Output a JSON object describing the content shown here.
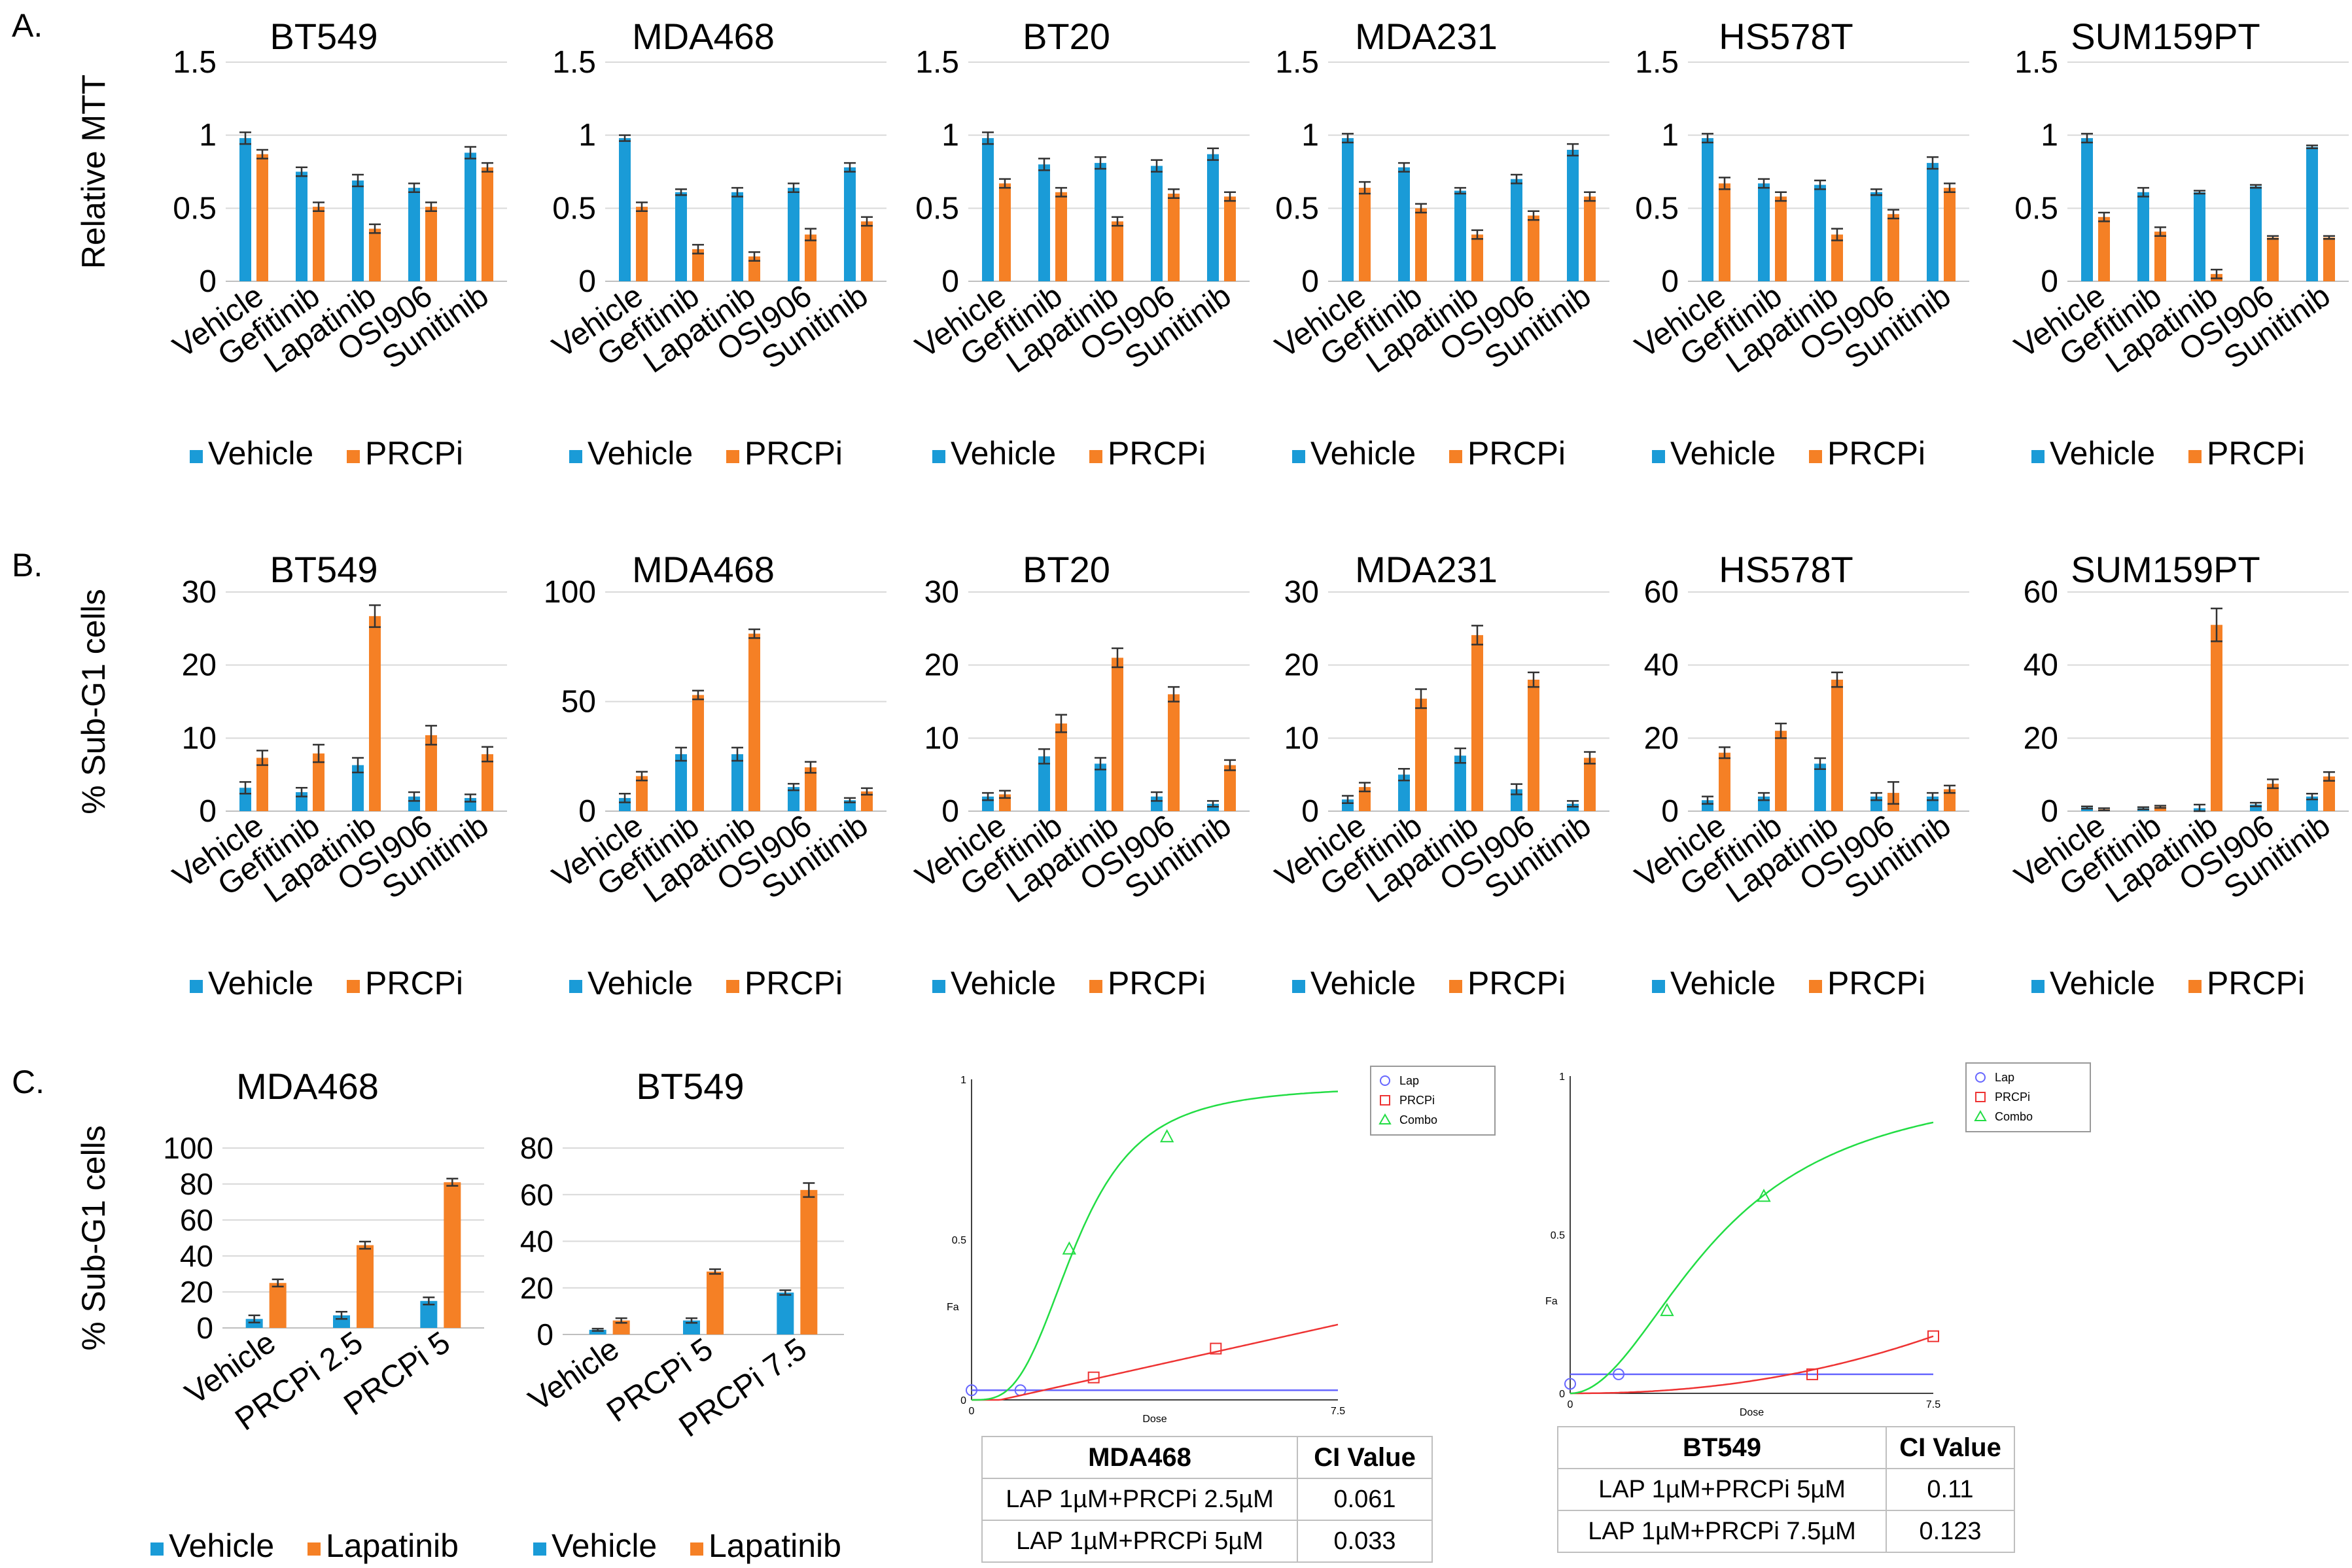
{
  "colors": {
    "vehicle": "#1a9bd7",
    "treatment": "#f58025",
    "error": "#333333",
    "grid": "#d9d9d9",
    "lap": "#6666ff",
    "prcpi": "#ee3333",
    "combo": "#22dd44"
  },
  "panels": {
    "a": "A.",
    "b": "B.",
    "c": "C."
  },
  "chart_data": [
    {
      "id": "A1",
      "type": "bar",
      "title": "BT549",
      "ylabel": "Relative MTT",
      "ylim": [
        0,
        1.5
      ],
      "yticks": [
        "0",
        "0.5",
        "1",
        "1.5"
      ],
      "categories": [
        "Vehicle",
        "Gefitinib",
        "Lapatinib",
        "OSI906",
        "Sunitinib"
      ],
      "legend": [
        "Vehicle",
        "PRCPi"
      ],
      "series": [
        {
          "name": "Vehicle",
          "values": [
            0.98,
            0.75,
            0.69,
            0.64,
            0.88
          ],
          "errors": [
            0.04,
            0.03,
            0.04,
            0.03,
            0.04
          ]
        },
        {
          "name": "PRCPi",
          "values": [
            0.87,
            0.51,
            0.36,
            0.51,
            0.78
          ],
          "errors": [
            0.03,
            0.03,
            0.03,
            0.03,
            0.03
          ]
        }
      ]
    },
    {
      "id": "A2",
      "type": "bar",
      "title": "MDA468",
      "ylim": [
        0,
        1.5
      ],
      "yticks": [
        "0",
        "0.5",
        "1",
        "1.5"
      ],
      "categories": [
        "Vehicle",
        "Gefitinib",
        "Lapatinib",
        "OSI906",
        "Sunitinib"
      ],
      "legend": [
        "Vehicle",
        "PRCPi"
      ],
      "series": [
        {
          "name": "Vehicle",
          "values": [
            0.98,
            0.61,
            0.61,
            0.64,
            0.78
          ],
          "errors": [
            0.02,
            0.02,
            0.03,
            0.03,
            0.03
          ]
        },
        {
          "name": "PRCPi",
          "values": [
            0.51,
            0.22,
            0.17,
            0.32,
            0.41
          ],
          "errors": [
            0.03,
            0.03,
            0.03,
            0.04,
            0.03
          ]
        }
      ]
    },
    {
      "id": "A3",
      "type": "bar",
      "title": "BT20",
      "ylim": [
        0,
        1.5
      ],
      "yticks": [
        "0",
        "0.5",
        "1",
        "1.5"
      ],
      "categories": [
        "Vehicle",
        "Gefitinib",
        "Lapatinib",
        "OSI906",
        "Sunitinib"
      ],
      "legend": [
        "Vehicle",
        "PRCPi"
      ],
      "series": [
        {
          "name": "Vehicle",
          "values": [
            0.98,
            0.8,
            0.81,
            0.79,
            0.87
          ],
          "errors": [
            0.04,
            0.04,
            0.04,
            0.04,
            0.04
          ]
        },
        {
          "name": "PRCPi",
          "values": [
            0.67,
            0.61,
            0.41,
            0.6,
            0.58
          ],
          "errors": [
            0.03,
            0.03,
            0.03,
            0.03,
            0.03
          ]
        }
      ]
    },
    {
      "id": "A4",
      "type": "bar",
      "title": "MDA231",
      "ylim": [
        0,
        1.5
      ],
      "yticks": [
        "0",
        "0.5",
        "1",
        "1.5"
      ],
      "categories": [
        "Vehicle",
        "Gefitinib",
        "Lapatinib",
        "OSI906",
        "Sunitinib"
      ],
      "legend": [
        "Vehicle",
        "PRCPi"
      ],
      "series": [
        {
          "name": "Vehicle",
          "values": [
            0.98,
            0.78,
            0.62,
            0.7,
            0.9
          ],
          "errors": [
            0.03,
            0.03,
            0.02,
            0.03,
            0.04
          ]
        },
        {
          "name": "PRCPi",
          "values": [
            0.64,
            0.5,
            0.32,
            0.45,
            0.58
          ],
          "errors": [
            0.04,
            0.03,
            0.03,
            0.03,
            0.03
          ]
        }
      ]
    },
    {
      "id": "A5",
      "type": "bar",
      "title": "HS578T",
      "ylim": [
        0,
        1.5
      ],
      "yticks": [
        "0",
        "0.5",
        "1",
        "1.5"
      ],
      "categories": [
        "Vehicle",
        "Gefitinib",
        "Lapatinib",
        "OSI906",
        "Sunitinib"
      ],
      "legend": [
        "Vehicle",
        "PRCPi"
      ],
      "series": [
        {
          "name": "Vehicle",
          "values": [
            0.98,
            0.67,
            0.66,
            0.61,
            0.81
          ],
          "errors": [
            0.03,
            0.03,
            0.03,
            0.02,
            0.04
          ]
        },
        {
          "name": "PRCPi",
          "values": [
            0.67,
            0.58,
            0.32,
            0.46,
            0.64
          ],
          "errors": [
            0.04,
            0.03,
            0.04,
            0.03,
            0.03
          ]
        }
      ]
    },
    {
      "id": "A6",
      "type": "bar",
      "title": "SUM159PT",
      "ylim": [
        0,
        1.5
      ],
      "yticks": [
        "0",
        "0.5",
        "1",
        "1.5"
      ],
      "categories": [
        "Vehicle",
        "Gefitinib",
        "Lapatinib",
        "OSI906",
        "Sunitinib"
      ],
      "legend": [
        "Vehicle",
        "PRCPi"
      ],
      "series": [
        {
          "name": "Vehicle",
          "values": [
            0.98,
            0.61,
            0.61,
            0.65,
            0.92
          ],
          "errors": [
            0.03,
            0.03,
            0.01,
            0.01,
            0.01
          ]
        },
        {
          "name": "PRCPi",
          "values": [
            0.44,
            0.34,
            0.05,
            0.3,
            0.3
          ],
          "errors": [
            0.03,
            0.03,
            0.03,
            0.01,
            0.01
          ]
        }
      ]
    },
    {
      "id": "B1",
      "type": "bar",
      "title": "BT549",
      "ylabel": "% Sub-G1 cells",
      "ylim": [
        0,
        30
      ],
      "yticks": [
        "0",
        "10",
        "20",
        "30"
      ],
      "categories": [
        "Vehicle",
        "Gefitinib",
        "Lapatinib",
        "OSI906",
        "Sunitinib"
      ],
      "legend": [
        "Vehicle",
        "PRCPi"
      ],
      "series": [
        {
          "name": "Vehicle",
          "values": [
            3.2,
            2.6,
            6.3,
            2.0,
            1.8
          ],
          "errors": [
            0.8,
            0.6,
            1.0,
            0.6,
            0.5
          ]
        },
        {
          "name": "PRCPi",
          "values": [
            7.3,
            7.9,
            26.7,
            10.4,
            7.8
          ],
          "errors": [
            1.0,
            1.2,
            1.5,
            1.3,
            1.0
          ]
        }
      ]
    },
    {
      "id": "B2",
      "type": "bar",
      "title": "MDA468",
      "ylim": [
        0,
        100
      ],
      "yticks": [
        "0",
        "50",
        "100"
      ],
      "categories": [
        "Vehicle",
        "Gefitinib",
        "Lapatinib",
        "OSI906",
        "Sunitinib"
      ],
      "legend": [
        "Vehicle",
        "PRCPi"
      ],
      "series": [
        {
          "name": "Vehicle",
          "values": [
            6,
            26,
            26,
            11,
            5
          ],
          "errors": [
            2,
            3,
            3,
            1.5,
            1
          ]
        },
        {
          "name": "PRCPi",
          "values": [
            16,
            53,
            81,
            20,
            9
          ],
          "errors": [
            2,
            2,
            2,
            2.5,
            1.5
          ]
        }
      ]
    },
    {
      "id": "B3",
      "type": "bar",
      "title": "BT20",
      "ylim": [
        0,
        30
      ],
      "yticks": [
        "0",
        "10",
        "20",
        "30"
      ],
      "categories": [
        "Vehicle",
        "Gefitinib",
        "Lapatinib",
        "OSI906",
        "Sunitinib"
      ],
      "legend": [
        "Vehicle",
        "PRCPi"
      ],
      "series": [
        {
          "name": "Vehicle",
          "values": [
            2.0,
            7.5,
            6.5,
            2.0,
            1.0
          ],
          "errors": [
            0.5,
            1.0,
            0.8,
            0.6,
            0.4
          ]
        },
        {
          "name": "PRCPi",
          "values": [
            2.3,
            12.0,
            21.0,
            16.0,
            6.3
          ],
          "errors": [
            0.5,
            1.2,
            1.3,
            1.0,
            0.7
          ]
        }
      ]
    },
    {
      "id": "B4",
      "type": "bar",
      "title": "MDA231",
      "ylim": [
        0,
        30
      ],
      "yticks": [
        "0",
        "10",
        "20",
        "30"
      ],
      "categories": [
        "Vehicle",
        "Gefitinib",
        "Lapatinib",
        "OSI906",
        "Sunitinib"
      ],
      "legend": [
        "Vehicle",
        "PRCPi"
      ],
      "series": [
        {
          "name": "Vehicle",
          "values": [
            1.6,
            5.0,
            7.6,
            3.0,
            1.0
          ],
          "errors": [
            0.5,
            0.8,
            1.0,
            0.7,
            0.4
          ]
        },
        {
          "name": "PRCPi",
          "values": [
            3.3,
            15.4,
            24.1,
            18.0,
            7.3
          ],
          "errors": [
            0.6,
            1.3,
            1.3,
            1.0,
            0.8
          ]
        }
      ]
    },
    {
      "id": "B5",
      "type": "bar",
      "title": "HS578T",
      "ylim": [
        0,
        60
      ],
      "yticks": [
        "0",
        "20",
        "40",
        "60"
      ],
      "categories": [
        "Vehicle",
        "Gefitinib",
        "Lapatinib",
        "OSI906",
        "Sunitinib"
      ],
      "legend": [
        "Vehicle",
        "PRCPi"
      ],
      "series": [
        {
          "name": "Vehicle",
          "values": [
            3,
            4,
            13,
            4,
            4
          ],
          "errors": [
            1,
            1,
            1.5,
            1,
            1
          ]
        },
        {
          "name": "PRCPi",
          "values": [
            16,
            22,
            36,
            5,
            6
          ],
          "errors": [
            1.5,
            2,
            2,
            3,
            1
          ]
        }
      ]
    },
    {
      "id": "B6",
      "type": "bar",
      "title": "SUM159PT",
      "ylim": [
        0,
        60
      ],
      "yticks": [
        "0",
        "20",
        "40",
        "60"
      ],
      "categories": [
        "Vehicle",
        "Gefitinib",
        "Lapatinib",
        "OSI906",
        "Sunitinib"
      ],
      "legend": [
        "Vehicle",
        "PRCPi"
      ],
      "series": [
        {
          "name": "Vehicle",
          "values": [
            1.0,
            0.8,
            0.8,
            1.8,
            4.0
          ],
          "errors": [
            0.3,
            0.3,
            1.0,
            0.5,
            0.8
          ]
        },
        {
          "name": "PRCPi",
          "values": [
            0.5,
            1.2,
            51.0,
            7.5,
            9.5
          ],
          "errors": [
            0.3,
            0.3,
            4.5,
            1.2,
            1.2
          ]
        }
      ]
    },
    {
      "id": "C1",
      "type": "bar",
      "title": "MDA468",
      "ylabel": "% Sub-G1 cells",
      "ylim": [
        0,
        100
      ],
      "yticks": [
        "0",
        "20",
        "40",
        "60",
        "80",
        "100"
      ],
      "categories": [
        "Vehicle",
        "PRCPi 2.5",
        "PRCPi 5"
      ],
      "legend": [
        "Vehicle",
        "Lapatinib"
      ],
      "series": [
        {
          "name": "Vehicle",
          "values": [
            5,
            7,
            15
          ],
          "errors": [
            2,
            2,
            2
          ]
        },
        {
          "name": "Lapatinib",
          "values": [
            25,
            46,
            81
          ],
          "errors": [
            2,
            2,
            2
          ]
        }
      ]
    },
    {
      "id": "C2",
      "type": "bar",
      "title": "BT549",
      "ylim": [
        0,
        80
      ],
      "yticks": [
        "0",
        "20",
        "40",
        "60",
        "80"
      ],
      "categories": [
        "Vehicle",
        "PRCPi 5",
        "PRCPi 7.5"
      ],
      "legend": [
        "Vehicle",
        "Lapatinib"
      ],
      "series": [
        {
          "name": "Vehicle",
          "values": [
            2,
            6,
            18
          ],
          "errors": [
            0.5,
            1,
            1
          ]
        },
        {
          "name": "Lapatinib",
          "values": [
            6,
            27,
            62
          ],
          "errors": [
            1,
            1,
            3
          ]
        }
      ]
    },
    {
      "id": "C3",
      "type": "line",
      "xlabel": "Dose",
      "ylabel": "Fa",
      "xlim": [
        0,
        7.5
      ],
      "ylim": [
        0,
        1
      ],
      "xticks": [
        "0",
        "7.5"
      ],
      "yticks": [
        "0",
        "0.5",
        "1"
      ],
      "legend": [
        "Lap",
        "PRCPi",
        "Combo"
      ],
      "series": [
        {
          "name": "Lap",
          "marker": "circle",
          "x": [
            0,
            1
          ],
          "y": [
            0.03,
            0.03
          ],
          "curve": {
            "type": "flat",
            "value": 0.03
          }
        },
        {
          "name": "PRCPi",
          "marker": "square",
          "x": [
            2.5,
            5
          ],
          "y": [
            0.07,
            0.16
          ],
          "curve": {
            "type": "linear",
            "a": -0.02,
            "b": 0.034
          }
        },
        {
          "name": "Combo",
          "marker": "triangle",
          "x": [
            2,
            4
          ],
          "y": [
            0.47,
            0.82
          ],
          "curve": {
            "type": "hill",
            "ec50": 2.15,
            "n": 3.2,
            "max": 0.98
          }
        }
      ],
      "table": {
        "header": [
          "MDA468",
          "CI Value"
        ],
        "rows": [
          [
            "LAP 1µM+PRCPi 2.5µM",
            "0.061"
          ],
          [
            "LAP 1µM+PRCPi 5µM",
            "0.033"
          ]
        ]
      }
    },
    {
      "id": "C4",
      "type": "line",
      "xlabel": "Dose",
      "ylabel": "Fa",
      "xlim": [
        0,
        7.5
      ],
      "ylim": [
        0,
        1
      ],
      "xticks": [
        "0",
        "7.5"
      ],
      "yticks": [
        "0",
        "0.5",
        "1"
      ],
      "legend": [
        "Lap",
        "PRCPi",
        "Combo"
      ],
      "series": [
        {
          "name": "Lap",
          "marker": "circle",
          "x": [
            0,
            1
          ],
          "y": [
            0.03,
            0.06
          ],
          "curve": {
            "type": "flat",
            "value": 0.06
          }
        },
        {
          "name": "PRCPi",
          "marker": "square",
          "x": [
            5,
            7.5
          ],
          "y": [
            0.06,
            0.18
          ],
          "curve": {
            "type": "power",
            "k": 0.18,
            "p": 2.2
          }
        },
        {
          "name": "Combo",
          "marker": "triangle",
          "x": [
            2,
            4
          ],
          "y": [
            0.26,
            0.62
          ],
          "curve": {
            "type": "hill",
            "ec50": 3.1,
            "n": 2.0,
            "max": 1.0
          }
        }
      ],
      "table": {
        "header": [
          "BT549",
          "CI Value"
        ],
        "rows": [
          [
            "LAP 1µM+PRCPi 5µM",
            "0.11"
          ],
          [
            "LAP 1µM+PRCPi 7.5µM",
            "0.123"
          ]
        ]
      }
    }
  ]
}
